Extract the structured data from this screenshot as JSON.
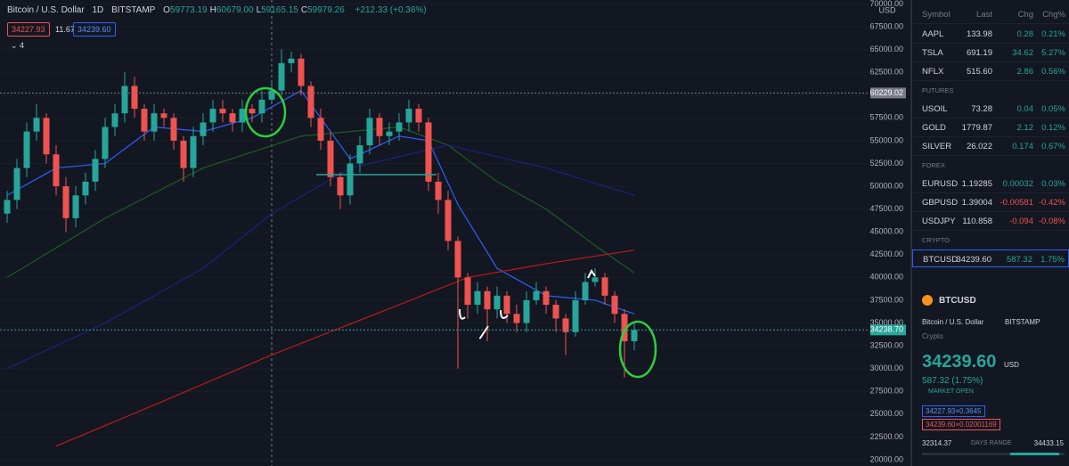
{
  "header": {
    "symbol": "Bitcoin / U.S. Dollar",
    "interval": "1D",
    "exchange": "BITSTAMP",
    "ohlc": [
      {
        "label": "O",
        "value": "59773.19"
      },
      {
        "label": "H",
        "value": "60679.00"
      },
      {
        "label": "L",
        "value": "59165.15"
      },
      {
        "label": "C",
        "value": "59979.26"
      }
    ],
    "change": "+212.33 (+0.36%)",
    "bid": "34227.93",
    "spread": "11.67",
    "ask": "34239.60",
    "indicators": "4"
  },
  "chart_data": {
    "type": "candlestick",
    "currency": "USD",
    "ylim": [
      20000,
      70000
    ],
    "yticks": [
      {
        "value": 20000,
        "label": "20000.00"
      },
      {
        "value": 22500,
        "label": "22500.00"
      },
      {
        "value": 25000,
        "label": "25000.00"
      },
      {
        "value": 27500,
        "label": "27500.00"
      },
      {
        "value": 30000,
        "label": "30000.00"
      },
      {
        "value": 32500,
        "label": "32500.00"
      },
      {
        "value": 35000,
        "label": "35000.00"
      },
      {
        "value": 37500,
        "label": "37500.00"
      },
      {
        "value": 40000,
        "label": "40000.00"
      },
      {
        "value": 42500,
        "label": "42500.00"
      },
      {
        "value": 45000,
        "label": "45000.00"
      },
      {
        "value": 47500,
        "label": "47500.00"
      },
      {
        "value": 50000,
        "label": "50000.00"
      },
      {
        "value": 52500,
        "label": "52500.00"
      },
      {
        "value": 55000,
        "label": "55000.00"
      },
      {
        "value": 57500,
        "label": "57500.00"
      },
      {
        "value": 60000,
        "label": "60000.00"
      },
      {
        "value": 62500,
        "label": "62500.00"
      },
      {
        "value": 65000,
        "label": "65000.00"
      },
      {
        "value": 67500,
        "label": "67500.00"
      },
      {
        "value": 70000,
        "label": "70000.00"
      }
    ],
    "price_lines": [
      {
        "value": 60229.02,
        "label": "60229.02",
        "color": "#787b86"
      },
      {
        "value": 34238.7,
        "label": "34238.70",
        "color": "#26a69a"
      }
    ],
    "up_color": "#26a69a",
    "down_color": "#ef5350",
    "candles": {
      "open": [
        47000,
        48500,
        52000,
        56000,
        57500,
        53500,
        50000,
        46500,
        49000,
        50500,
        53000,
        56500,
        58000,
        61000,
        58500,
        56000,
        58000,
        57500,
        55000,
        52000,
        55500,
        57000,
        58500,
        58000,
        57000,
        58500,
        58000,
        59500,
        60500,
        63500,
        64000,
        61000,
        57500,
        55000,
        51000,
        49000,
        52500,
        54500,
        57500,
        55500,
        56000,
        57000,
        58500,
        57000,
        50500,
        48500,
        44000,
        40000,
        37000,
        38500,
        36500,
        38000,
        36000,
        35000,
        37500,
        38500,
        37000,
        35500,
        34000,
        37500,
        39500,
        40000,
        38000,
        36000,
        33000
      ],
      "high": [
        49500,
        53000,
        57000,
        59000,
        58000,
        54500,
        51000,
        50000,
        51500,
        54000,
        57500,
        59000,
        62500,
        62000,
        59000,
        59000,
        58500,
        58000,
        55500,
        56500,
        58000,
        59500,
        59500,
        58500,
        59500,
        59000,
        60500,
        61500,
        65000,
        64800,
        64500,
        61500,
        58500,
        56000,
        51500,
        53500,
        55500,
        58500,
        58000,
        57000,
        58000,
        59500,
        59000,
        57500,
        51500,
        49500,
        44500,
        40500,
        39500,
        39000,
        39000,
        38500,
        37000,
        38500,
        39500,
        39000,
        37500,
        36000,
        38500,
        40500,
        41000,
        40500,
        38500,
        36500,
        35000
      ],
      "low": [
        46000,
        47500,
        51000,
        55000,
        52500,
        49000,
        45000,
        45500,
        48000,
        49500,
        52000,
        55500,
        57000,
        57500,
        55000,
        55000,
        56500,
        54000,
        50500,
        51000,
        54500,
        56000,
        57000,
        56000,
        56000,
        57000,
        57000,
        59000,
        60000,
        62500,
        60000,
        56500,
        54000,
        50000,
        47500,
        48000,
        51500,
        53500,
        54500,
        54500,
        55000,
        56000,
        56000,
        49500,
        47000,
        43000,
        30000,
        35500,
        36000,
        33000,
        35500,
        35000,
        34000,
        34000,
        37000,
        36000,
        34000,
        31500,
        33500,
        37000,
        39000,
        37000,
        35000,
        29000,
        32000
      ],
      "close": [
        48500,
        52000,
        56000,
        57500,
        53500,
        50000,
        46500,
        49000,
        50500,
        53000,
        56500,
        58000,
        61000,
        58500,
        56000,
        58000,
        57500,
        55000,
        52000,
        55500,
        57000,
        58500,
        58000,
        57000,
        58500,
        58000,
        59500,
        60500,
        63500,
        64000,
        61000,
        57500,
        55000,
        51000,
        49000,
        52500,
        54500,
        57500,
        55500,
        56000,
        57000,
        58500,
        57000,
        50500,
        48500,
        44000,
        40000,
        37000,
        38500,
        36500,
        38000,
        36000,
        35000,
        37500,
        38500,
        37000,
        35500,
        34000,
        37500,
        39500,
        40000,
        38000,
        36000,
        33000,
        34239.6
      ]
    },
    "series": [
      {
        "color": "#2962ff",
        "x": [
          0,
          5,
          10,
          15,
          20,
          25,
          30,
          35,
          40,
          43,
          46,
          50,
          55,
          60,
          64
        ],
        "values": [
          49000,
          52000,
          52500,
          56500,
          56000,
          57500,
          60500,
          53000,
          55500,
          55000,
          48000,
          41000,
          38000,
          37500,
          36000
        ]
      },
      {
        "color": "#1b5e20",
        "x": [
          0,
          10,
          20,
          30,
          40,
          45,
          50,
          55,
          60,
          64
        ],
        "values": [
          40000,
          46500,
          52000,
          55500,
          56500,
          54500,
          50500,
          47500,
          43500,
          40500
        ]
      },
      {
        "color": "#1a237e",
        "x": [
          0,
          10,
          20,
          27,
          35,
          45,
          55,
          64
        ],
        "values": [
          30000,
          35000,
          41000,
          47000,
          52000,
          54500,
          52000,
          49000
        ]
      },
      {
        "color": "#b71c1c",
        "x": [
          5,
          15,
          27,
          40,
          47,
          55,
          64
        ],
        "values": [
          21500,
          26000,
          31500,
          37000,
          40000,
          41500,
          43000
        ]
      }
    ]
  },
  "watchlist": {
    "columns": [
      "Symbol",
      "Last",
      "Chg",
      "Chg%"
    ],
    "groups": [
      {
        "rows": [
          [
            "AAPL",
            "133.98",
            "0.28",
            "0.21%"
          ],
          [
            "TSLA",
            "691.19",
            "34.62",
            "5.27%"
          ],
          [
            "NFLX",
            "515.60",
            "2.86",
            "0.56%"
          ]
        ]
      },
      {
        "label": "FUTURES",
        "rows": [
          [
            "USOIL",
            "73.28",
            "0.04",
            "0.05%"
          ],
          [
            "GOLD",
            "1779.87",
            "2.12",
            "0.12%"
          ],
          [
            "SILVER",
            "26.022",
            "0.174",
            "0.67%"
          ]
        ]
      },
      {
        "label": "FOREX",
        "rows": [
          [
            "EURUSD",
            "1.19285",
            "0.00032",
            "0.03%"
          ],
          [
            "GBPUSD",
            "1.39004",
            "-0.00581",
            "-0.42%"
          ],
          [
            "USDJPY",
            "110.858",
            "-0.094",
            "-0.08%"
          ]
        ]
      },
      {
        "label": "CRYPTO",
        "rows": [
          [
            "BTCUSD",
            "34239.60",
            "587.32",
            "1.75%"
          ]
        ]
      }
    ]
  },
  "details": {
    "symbol": "BTCUSD",
    "name": "Bitcoin / U.S. Dollar",
    "exchange": "BITSTAMP",
    "kind": "Crypto",
    "price": "34239.60",
    "currency": "USD",
    "change": "587.32 (1.75%)",
    "status": "MARKET OPEN",
    "bid": "34227.93×0.3645",
    "ask": "34239.60×0.02001169",
    "range_low": "32314.37",
    "range_label": "DAYS RANGE",
    "range_high": "34433.15"
  }
}
